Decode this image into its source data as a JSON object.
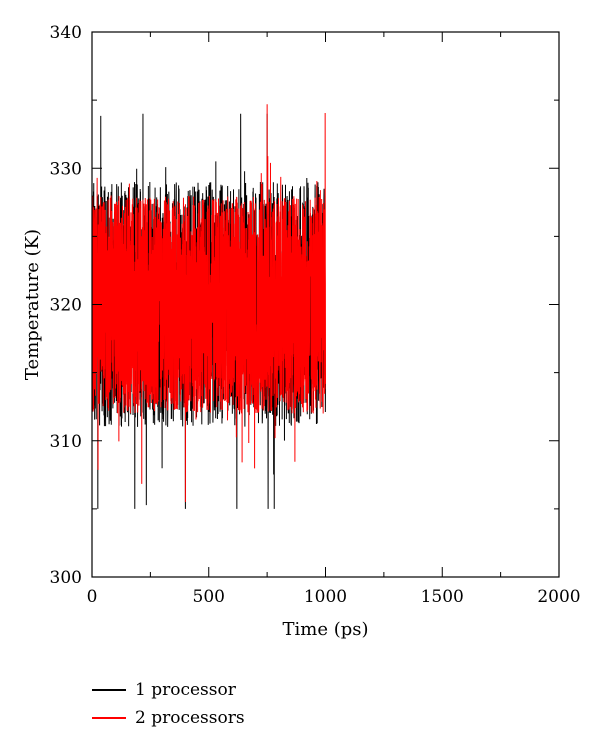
{
  "chart_data": {
    "type": "line",
    "title": "",
    "xlabel": "Time (ps)",
    "ylabel": "Temperature (K)",
    "xlim": [
      0,
      2000
    ],
    "ylim": [
      300,
      340
    ],
    "xticks": [
      "0",
      "500",
      "1000",
      "1500",
      "2000"
    ],
    "yticks": [
      "300",
      "310",
      "320",
      "330",
      "340"
    ],
    "grid": false,
    "legend_position": "bottom-left, below plot",
    "series": [
      {
        "name": "1 processor",
        "color": "#000000",
        "x_start": 0,
        "x_end": 1000,
        "baseline": 320,
        "typical_band": [
          311,
          329
        ],
        "min": 305,
        "max": 334,
        "initial_values": [
          {
            "x": 0,
            "y": 305
          },
          {
            "x": 25,
            "y": 305
          },
          {
            "x": 25,
            "y": 310
          }
        ]
      },
      {
        "name": "2 processors",
        "color": "#ff0000",
        "x_start": 0,
        "x_end": 1000,
        "baseline": 320,
        "typical_band": [
          312,
          328
        ],
        "min": 305.5,
        "max": 334.7
      }
    ]
  }
}
